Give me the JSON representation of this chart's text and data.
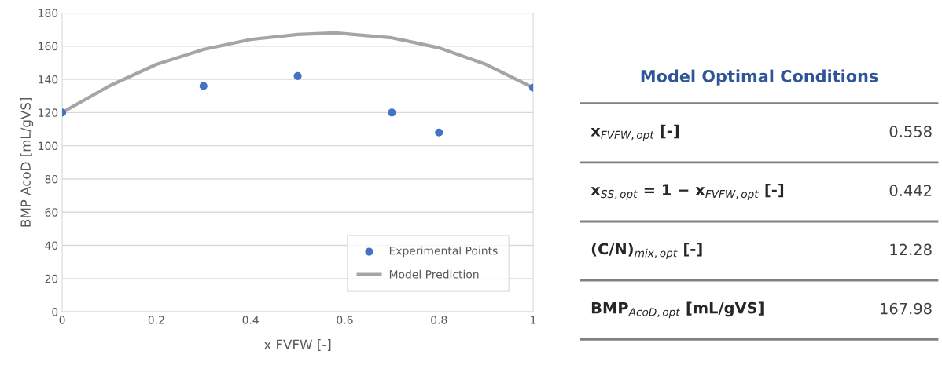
{
  "chart_data": [
    {
      "type": "scatter",
      "xlabel": "x FVFW [-]",
      "ylabel": "BMP AcoD [mL/gVS]",
      "xlim": [
        0,
        1
      ],
      "xticks": [
        0,
        0.2,
        0.4,
        0.6,
        0.8,
        1
      ],
      "ylim": [
        0,
        180
      ],
      "yticks": [
        0,
        20,
        40,
        60,
        80,
        100,
        120,
        140,
        160,
        180
      ],
      "grid": "y",
      "legend": "bottom right",
      "series": [
        {
          "name": "Experimental Points",
          "type": "scatter",
          "marker": "circle",
          "color": "#4472c4",
          "x": [
            0,
            0.3,
            0.5,
            0.7,
            0.8,
            1
          ],
          "values": [
            120,
            136,
            142,
            120,
            108,
            135
          ]
        },
        {
          "name": "Model Prediction",
          "type": "line",
          "marker": "none",
          "line_style": "solid",
          "color": "#a5a5a5",
          "x": [
            0,
            0.1,
            0.2,
            0.3,
            0.4,
            0.5,
            0.58,
            0.7,
            0.8,
            0.9,
            1
          ],
          "values": [
            120,
            136,
            149,
            158,
            164,
            167,
            168,
            165,
            159,
            149,
            135
          ]
        }
      ]
    },
    {
      "type": "other",
      "title": "Model Optimal Conditions",
      "annotations": [
        "x$_{FVFW,opt}$ [-]",
        "0.558",
        "x$_{SS,opt}$ = 1 − x$_{FVFW,opt}$ [-]",
        "0.442",
        "(C/N)$_{mix,opt}$ [-]",
        "12.28",
        "BMP$_{AcoD,opt}$ [mL/gVS]",
        "167.98"
      ]
    }
  ]
}
